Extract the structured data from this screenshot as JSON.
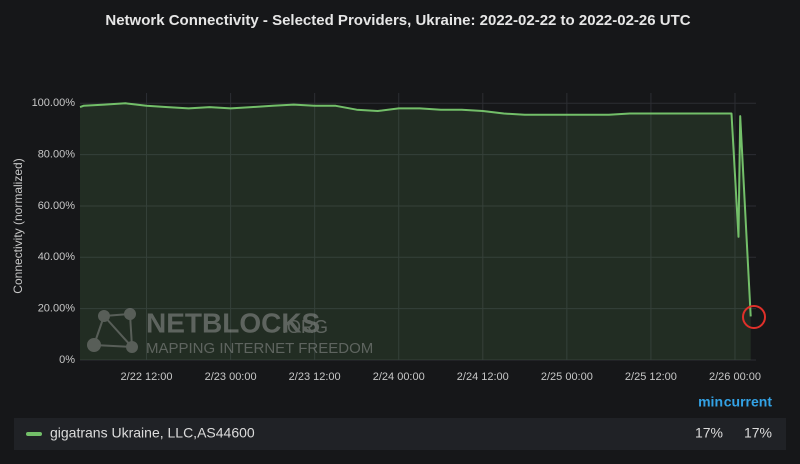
{
  "chart_data": {
    "type": "line",
    "title": "Network Connectivity - Selected Providers, Ukraine: 2022-02-22 to 2022-02-26 UTC",
    "y_label": "Connectivity (normalized)",
    "x": [
      "2/22 02:30",
      "2/22 03:00",
      "2/22 06:00",
      "2/22 09:00",
      "2/22 12:00",
      "2/22 15:00",
      "2/22 18:00",
      "2/22 21:00",
      "2/23 00:00",
      "2/23 03:00",
      "2/23 06:00",
      "2/23 09:00",
      "2/23 12:00",
      "2/23 15:00",
      "2/23 18:00",
      "2/23 21:00",
      "2/24 00:00",
      "2/24 03:00",
      "2/24 06:00",
      "2/24 09:00",
      "2/24 12:00",
      "2/24 15:00",
      "2/24 18:00",
      "2/24 21:00",
      "2/25 00:00",
      "2/25 03:00",
      "2/25 06:00",
      "2/25 09:00",
      "2/25 12:00",
      "2/25 15:00",
      "2/25 18:00",
      "2/25 21:00",
      "2/25 22:30",
      "2/25 23:30",
      "2/26 00:30",
      "2/26 00:45",
      "2/26 02:15"
    ],
    "series": [
      {
        "name": "gigatrans Ukraine, LLC,AS44600",
        "color": "#73bf69",
        "values": [
          98.5,
          99,
          99.5,
          100,
          99,
          98.5,
          98,
          98.5,
          98,
          98.5,
          99,
          99.5,
          99,
          99,
          97.5,
          97,
          98,
          98,
          97.5,
          97.5,
          97,
          96,
          95.5,
          95.5,
          95.5,
          95.5,
          95.5,
          96,
          96,
          96,
          96,
          96,
          96,
          96,
          48,
          95,
          17
        ],
        "legend_values": [
          17,
          17
        ],
        "legend_value_labels": [
          "17%",
          "17%"
        ]
      }
    ],
    "legend_columns": [
      "min",
      "current"
    ],
    "xlim": [
      "2/22 02:30",
      "2/26 03:00"
    ],
    "xticks": [
      "2/22 12:00",
      "2/23 00:00",
      "2/23 12:00",
      "2/24 00:00",
      "2/24 12:00",
      "2/25 00:00",
      "2/25 12:00",
      "2/26 00:00"
    ],
    "ylim": [
      0,
      104
    ],
    "yticks": [
      {
        "value": 0,
        "label": "0%"
      },
      {
        "value": 20,
        "label": "20.00%"
      },
      {
        "value": 40,
        "label": "40.00%"
      },
      {
        "value": 60,
        "label": "60.00%"
      },
      {
        "value": 80,
        "label": "80.00%"
      },
      {
        "value": 100,
        "label": "100.00%"
      }
    ],
    "grid": true,
    "watermark": {
      "brand": "NETBLOCKS",
      "suffix": ".ORG",
      "tagline": "MAPPING INTERNET FREEDOM"
    }
  }
}
